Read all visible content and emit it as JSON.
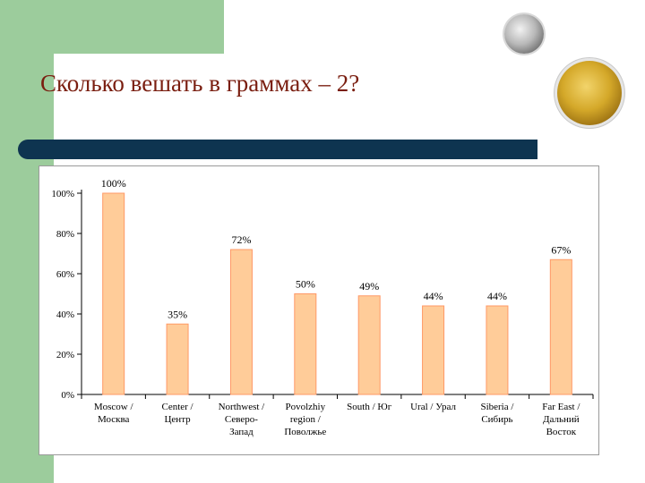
{
  "slide": {
    "title": "Сколько вешать в граммах – 2?"
  },
  "icons": [
    "silver-coin-icon",
    "gold-coin-icon"
  ],
  "colors": {
    "bar_fill": "#ffcc99",
    "bar_stroke": "#ff9966",
    "title_text": "#7a1e10",
    "accent_bar": "#0e3450",
    "side_green": "#9ccc9c"
  },
  "chart_data": {
    "type": "bar",
    "categories": [
      [
        "Moscow /",
        "Москва"
      ],
      [
        "Center /",
        "Центр"
      ],
      [
        "Northwest /",
        "Северо-",
        "Запад"
      ],
      [
        "Povolzhiy",
        "region /",
        "Поволжье"
      ],
      [
        "South / Юг"
      ],
      [
        "Ural / Урал"
      ],
      [
        "Siberia /",
        "Сибирь"
      ],
      [
        "Far East /",
        "Дальний",
        "Восток"
      ]
    ],
    "values": [
      100,
      35,
      72,
      50,
      49,
      44,
      44,
      67
    ],
    "data_labels": [
      "100%",
      "35%",
      "72%",
      "50%",
      "49%",
      "44%",
      "44%",
      "67%"
    ],
    "ylim": [
      0,
      100
    ],
    "yticks": [
      "0%",
      "20%",
      "40%",
      "60%",
      "80%",
      "100%"
    ],
    "ytick_values": [
      0,
      20,
      40,
      60,
      80,
      100
    ],
    "grid": false,
    "legend": "none"
  }
}
